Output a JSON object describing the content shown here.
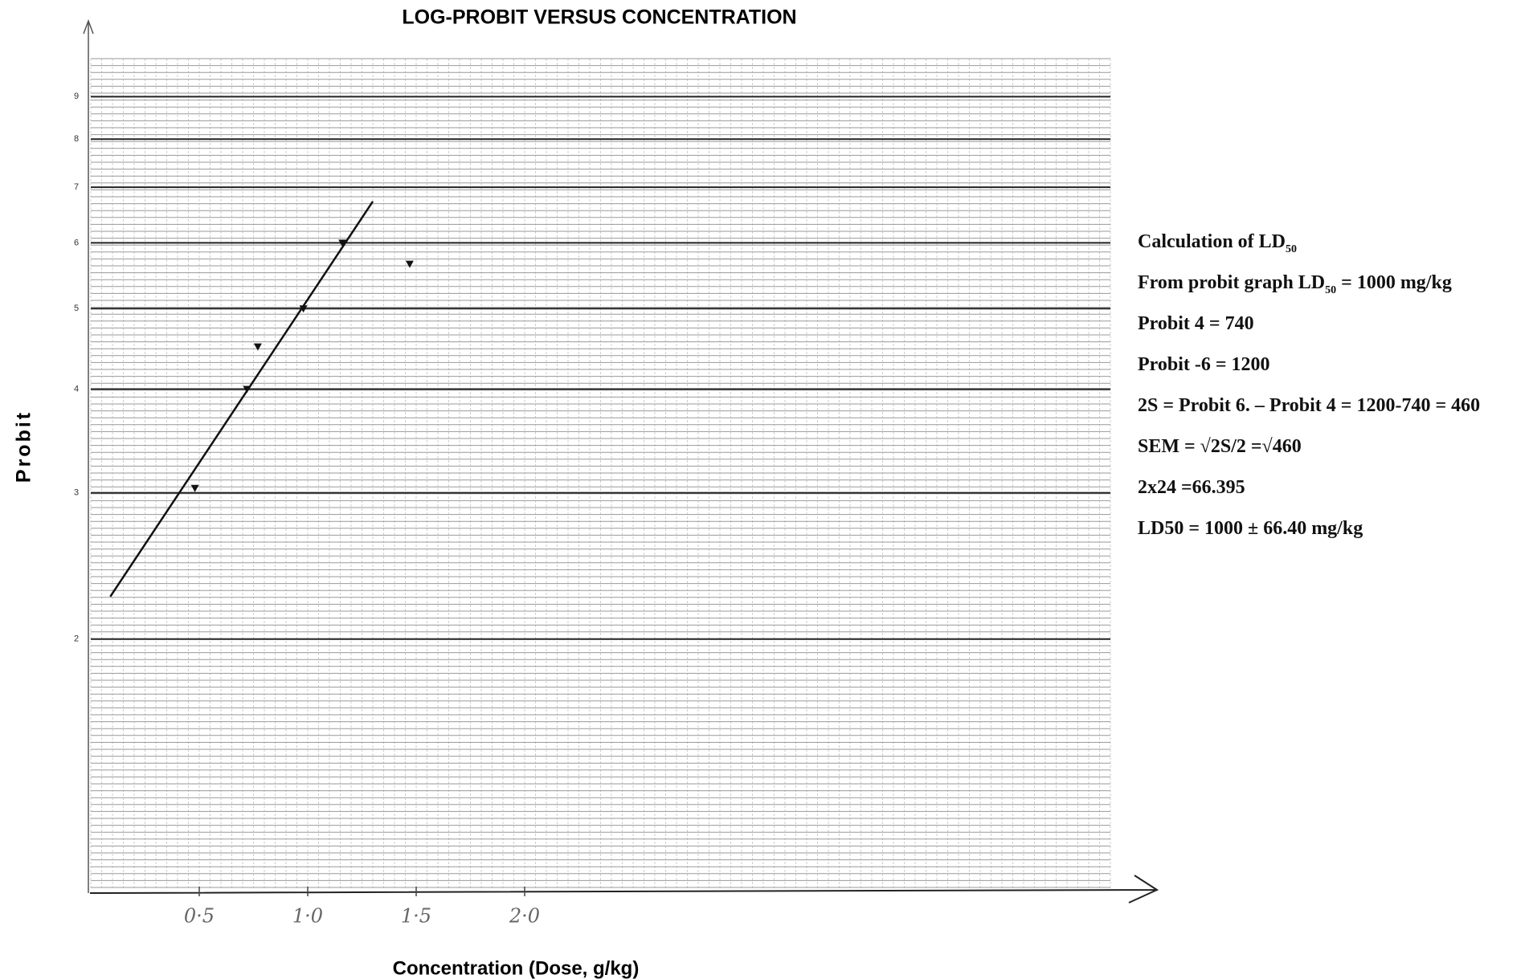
{
  "chart_data": {
    "type": "scatter",
    "title": "LOG-PROBIT VERSUS CONCENTRATION",
    "x_label": "Concentration (Dose, g/kg)",
    "y_label": "Probit",
    "x": [
      0.48,
      0.72,
      0.77,
      0.98,
      1.16,
      1.47
    ],
    "values": [
      3.04,
      4.0,
      4.5,
      5.0,
      6.0,
      5.66
    ],
    "color": "#111111",
    "fit_line": {
      "x": [
        0.09,
        1.3
      ],
      "values": [
        2.25,
        6.73
      ],
      "color": "#111111"
    },
    "xlim": [
      0,
      4.7
    ],
    "ylim": [
      1,
      10
    ],
    "log_y": true,
    "xticks": [
      {
        "value": 0.5,
        "label": "0·5"
      },
      {
        "value": 1.0,
        "label": "1·0"
      },
      {
        "value": 1.5,
        "label": "1·5"
      },
      {
        "value": 2.0,
        "label": "2·0"
      }
    ],
    "yticks": [
      2,
      3,
      4,
      5,
      6,
      7,
      8,
      9
    ],
    "grid": true
  },
  "notes": [
    [
      {
        "text": "Calculation of LD"
      },
      {
        "text": "50",
        "subscript": true
      }
    ],
    [
      {
        "text": "From probit graph LD"
      },
      {
        "text": "50",
        "subscript": true
      },
      {
        "text": " = 1000 mg/kg"
      }
    ],
    [
      {
        "text": "Probit 4 = 740"
      }
    ],
    [
      {
        "text": "Probit -6 = 1200"
      }
    ],
    [
      {
        "text": "2S = Probit 6. – Probit 4 = 1200-740 = 460"
      }
    ],
    [
      {
        "text": "SEM  =  √2S/2  =√460"
      }
    ],
    [
      {
        "text": "2x24 =66.395"
      }
    ],
    [
      {
        "text": "LD50 = 1000 ± 66.40 mg/kg"
      }
    ]
  ]
}
